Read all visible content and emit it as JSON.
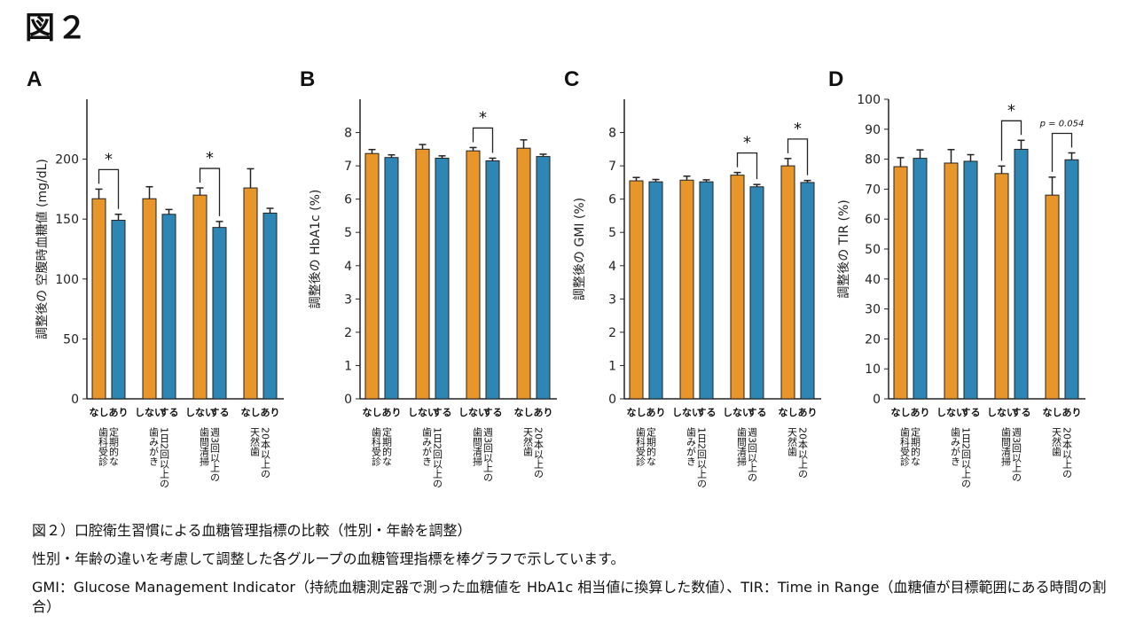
{
  "figure_title": "図２",
  "caption": {
    "line1": "図２）口腔衛生習慣による血糖管理指標の比較（性別・年齢を調整）",
    "line2": "性別・年齢の違いを考慮して調整した各グループの血糖管理指標を棒グラフで示しています。",
    "line3": "GMI：Glucose Management Indicator（持続血糖測定器で測った血糖値を HbA1c 相当値に換算した数値）、TIR：Time in Range（血糖値が目標範囲にある時間の割合）"
  },
  "colors": {
    "no": "#E8962A",
    "yes": "#2E86B5",
    "axis": "#222222"
  },
  "chart_data": [
    {
      "panel": "A",
      "type": "bar",
      "ylabel": "調整後の 空腹時血糖値 (mg/dL)",
      "ylim": [
        0,
        250
      ],
      "yticks": [
        0,
        50,
        100,
        150,
        200
      ],
      "groups": [
        {
          "name": "定期的な 歯科受診",
          "labels": [
            "なし",
            "あり"
          ],
          "values": [
            167,
            149
          ],
          "errors": [
            8,
            5
          ],
          "sig": "*"
        },
        {
          "name": "1日2回以上の 歯みがき",
          "labels": [
            "しない",
            "する"
          ],
          "values": [
            167,
            154
          ],
          "errors": [
            10,
            4
          ],
          "sig": ""
        },
        {
          "name": "週3回以上の 歯間清掃",
          "labels": [
            "しない",
            "する"
          ],
          "values": [
            170,
            143
          ],
          "errors": [
            6,
            5
          ],
          "sig": "*"
        },
        {
          "name": "20本以上の 天然歯",
          "labels": [
            "なし",
            "あり"
          ],
          "values": [
            176,
            155
          ],
          "errors": [
            16,
            4
          ],
          "sig": ""
        }
      ]
    },
    {
      "panel": "B",
      "type": "bar",
      "ylabel": "調整後の HbA1c (%)",
      "ylim": [
        0,
        9
      ],
      "yticks": [
        0,
        1,
        2,
        3,
        4,
        5,
        6,
        7,
        8
      ],
      "groups": [
        {
          "name": "定期的な 歯科受診",
          "labels": [
            "なし",
            "あり"
          ],
          "values": [
            7.37,
            7.25
          ],
          "errors": [
            0.12,
            0.08
          ],
          "sig": ""
        },
        {
          "name": "1日2回以上の 歯みがき",
          "labels": [
            "しない",
            "する"
          ],
          "values": [
            7.5,
            7.23
          ],
          "errors": [
            0.14,
            0.07
          ],
          "sig": ""
        },
        {
          "name": "週3回以上の 歯間清掃",
          "labels": [
            "しない",
            "する"
          ],
          "values": [
            7.45,
            7.15
          ],
          "errors": [
            0.1,
            0.08
          ],
          "sig": "*"
        },
        {
          "name": "20本以上の 天然歯",
          "labels": [
            "なし",
            "あり"
          ],
          "values": [
            7.53,
            7.28
          ],
          "errors": [
            0.25,
            0.07
          ],
          "sig": ""
        }
      ]
    },
    {
      "panel": "C",
      "type": "bar",
      "ylabel": "調整後の GMI (%)",
      "ylim": [
        0,
        9
      ],
      "yticks": [
        0,
        1,
        2,
        3,
        4,
        5,
        6,
        7,
        8
      ],
      "groups": [
        {
          "name": "定期的な 歯科受診",
          "labels": [
            "なし",
            "あり"
          ],
          "values": [
            6.55,
            6.52
          ],
          "errors": [
            0.1,
            0.07
          ],
          "sig": ""
        },
        {
          "name": "1日2回以上の 歯みがき",
          "labels": [
            "しない",
            "する"
          ],
          "values": [
            6.57,
            6.52
          ],
          "errors": [
            0.12,
            0.06
          ],
          "sig": ""
        },
        {
          "name": "週3回以上の 歯間清掃",
          "labels": [
            "しない",
            "する"
          ],
          "values": [
            6.72,
            6.37
          ],
          "errors": [
            0.08,
            0.07
          ],
          "sig": "*"
        },
        {
          "name": "20本以上の 天然歯",
          "labels": [
            "なし",
            "あり"
          ],
          "values": [
            7.0,
            6.5
          ],
          "errors": [
            0.22,
            0.06
          ],
          "sig": "*"
        }
      ]
    },
    {
      "panel": "D",
      "type": "bar",
      "ylabel": "調整後の TIR (%)",
      "ylim": [
        0,
        100
      ],
      "yticks": [
        0,
        10,
        20,
        30,
        40,
        50,
        60,
        70,
        80,
        90,
        100
      ],
      "groups": [
        {
          "name": "定期的な 歯科受診",
          "labels": [
            "なし",
            "あり"
          ],
          "values": [
            77.5,
            80.3
          ],
          "errors": [
            3,
            2.8
          ],
          "sig": ""
        },
        {
          "name": "1日2回以上の 歯みがき",
          "labels": [
            "しない",
            "する"
          ],
          "values": [
            78.7,
            79.3
          ],
          "errors": [
            4.5,
            2.2
          ],
          "sig": ""
        },
        {
          "name": "週3回以上の 歯間清掃",
          "labels": [
            "しない",
            "する"
          ],
          "values": [
            75.2,
            83.3
          ],
          "errors": [
            2.5,
            3
          ],
          "sig": "*"
        },
        {
          "name": "20本以上の 天然歯",
          "labels": [
            "なし",
            "あり"
          ],
          "values": [
            68,
            79.8
          ],
          "errors": [
            6,
            2.3
          ],
          "sig": "p = 0.054"
        }
      ]
    }
  ]
}
